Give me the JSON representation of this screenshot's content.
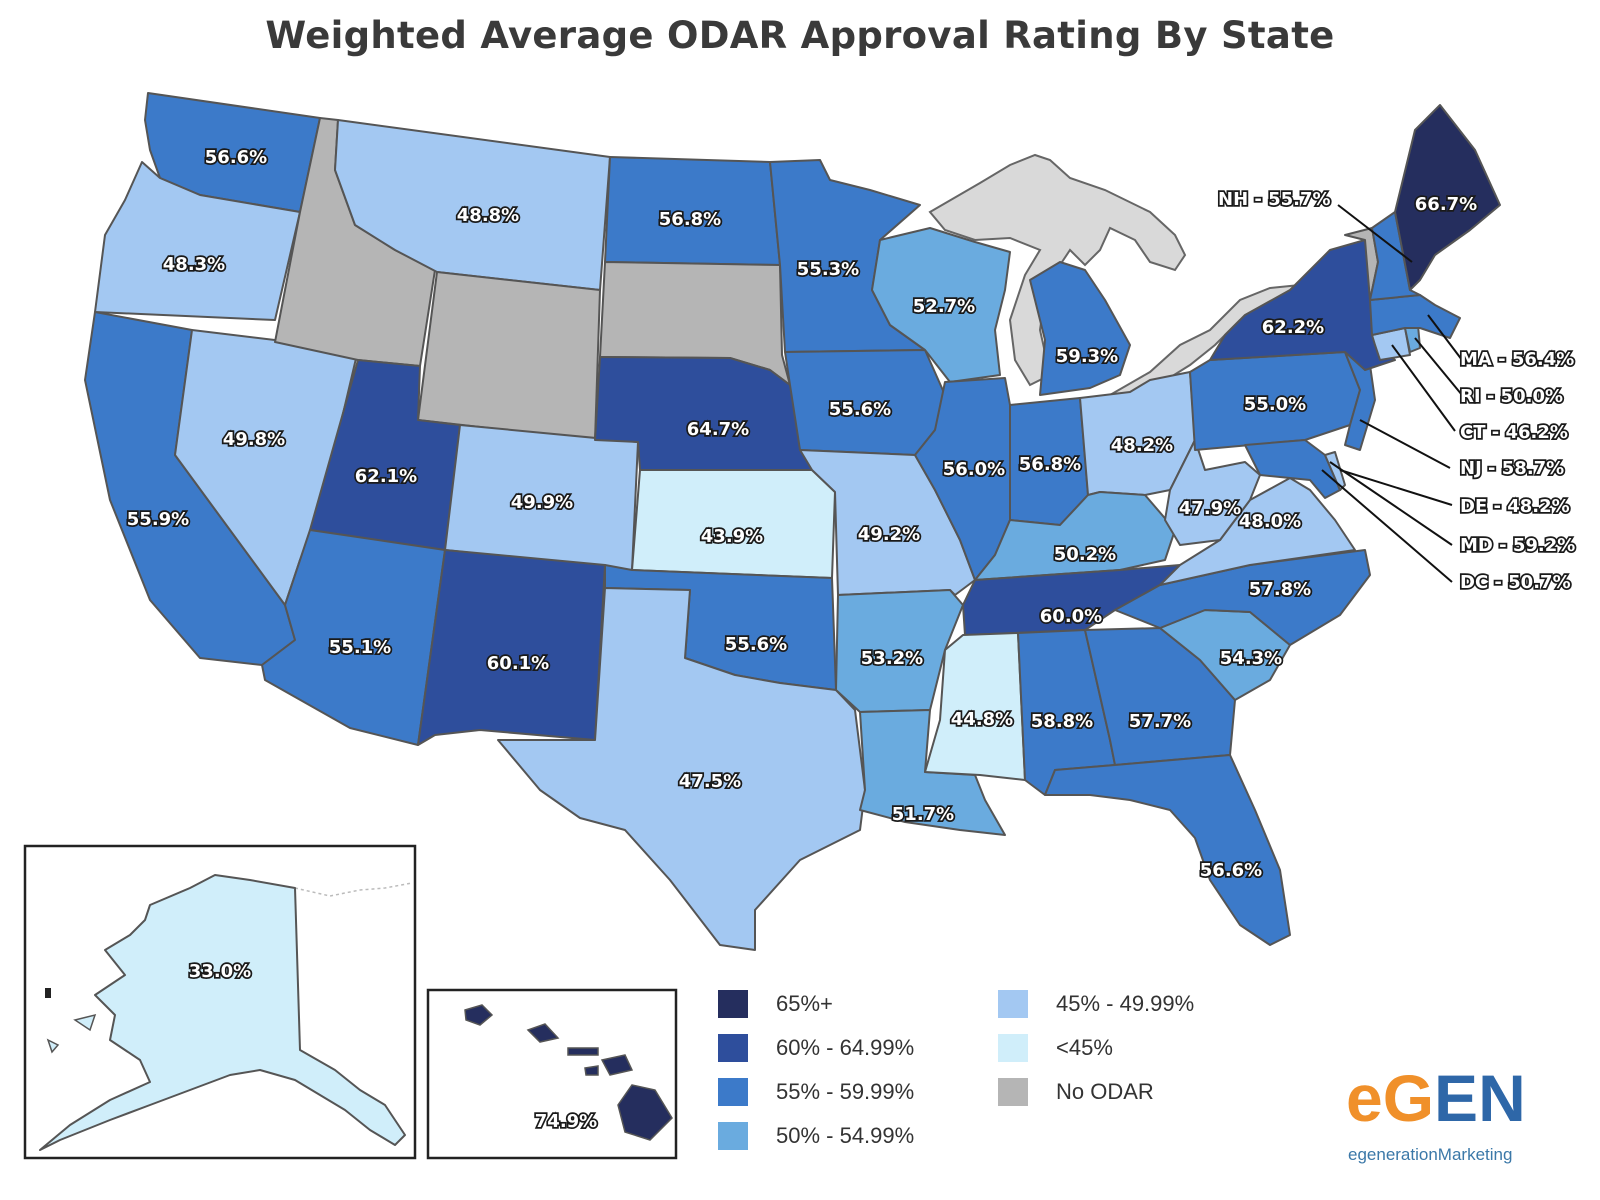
{
  "title": "Weighted Average ODAR Approval Rating By State",
  "colors": {
    "c65plus": "#252e5e",
    "c60": "#2e4e9c",
    "c55": "#3c7ac9",
    "c50": "#6aabdf",
    "c45": "#a3c8f2",
    "clt45": "#d0eefa",
    "noodar": "#b5b5b5",
    "lakes": "#d9d9d9"
  },
  "legend": [
    {
      "label": "65%+",
      "color": "#252e5e"
    },
    {
      "label": "60% - 64.99%",
      "color": "#2e4e9c"
    },
    {
      "label": "55% - 59.99%",
      "color": "#3c7ac9"
    },
    {
      "label": "50% - 54.99%",
      "color": "#6aabdf"
    },
    {
      "label": "45% - 49.99%",
      "color": "#a3c8f2"
    },
    {
      "label": "<45%",
      "color": "#d0eefa"
    },
    {
      "label": "No ODAR",
      "color": "#b5b5b5"
    }
  ],
  "states": {
    "WA": "56.6%",
    "OR": "48.3%",
    "CA": "55.9%",
    "NV": "49.8%",
    "MT": "48.8%",
    "UT": "62.1%",
    "AZ": "55.1%",
    "CO": "49.9%",
    "NM": "60.1%",
    "ND": "56.8%",
    "NE": "64.7%",
    "KS": "43.9%",
    "OK": "55.6%",
    "TX": "47.5%",
    "MN": "55.3%",
    "IA": "55.6%",
    "MO": "49.2%",
    "AR": "53.2%",
    "LA": "51.7%",
    "WI": "52.7%",
    "IL": "56.0%",
    "MI": "59.3%",
    "IN": "56.8%",
    "OH": "48.2%",
    "KY": "50.2%",
    "TN": "60.0%",
    "MS": "44.8%",
    "AL": "58.8%",
    "GA": "57.7%",
    "FL": "56.6%",
    "SC": "54.3%",
    "NC": "57.8%",
    "VA": "48.0%",
    "WV": "47.9%",
    "PA": "55.0%",
    "NY": "62.2%",
    "ME": "66.7%",
    "AK": "33.0%",
    "HI": "74.9%"
  },
  "callouts": [
    {
      "abbr": "NH",
      "sep": " - ",
      "value": "55.7%"
    },
    {
      "abbr": "MA",
      "sep": " - ",
      "value": "56.4%"
    },
    {
      "abbr": "RI",
      "sep": "  - ",
      "value": "50.0%"
    },
    {
      "abbr": "CT",
      "sep": "  - ",
      "value": "46.2%"
    },
    {
      "abbr": "NJ",
      "sep": "  - ",
      "value": "58.7%"
    },
    {
      "abbr": "DE",
      "sep": "  - ",
      "value": "48.2%"
    },
    {
      "abbr": "MD",
      "sep": " - ",
      "value": "59.2%"
    },
    {
      "abbr": "DC",
      "sep": " - ",
      "value": "50.7%"
    }
  ],
  "logo": {
    "part1": "eG",
    "part2": "EN",
    "sub": "egenerationMarketing"
  }
}
